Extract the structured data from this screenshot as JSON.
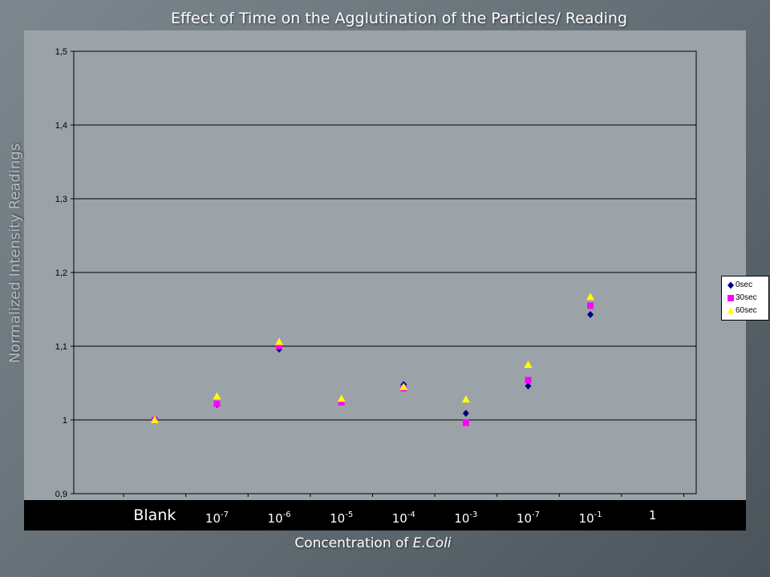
{
  "slide": {
    "title": "Effect of Time on the Agglutination of the Particles/ Reading"
  },
  "axes": {
    "ylabel": "Normalized Intensity Readings",
    "xlabel_prefix": "Concentration of ",
    "xlabel_italic": "E.Coli"
  },
  "x_categories": [
    {
      "base": "Blank",
      "exp": ""
    },
    {
      "base": "10",
      "exp": "-7"
    },
    {
      "base": "10",
      "exp": "-6"
    },
    {
      "base": "10",
      "exp": "-5"
    },
    {
      "base": "10",
      "exp": "-4"
    },
    {
      "base": "10",
      "exp": "-3"
    },
    {
      "base": "10",
      "exp": "-7"
    },
    {
      "base": "10",
      "exp": "-1"
    },
    {
      "base": "1",
      "exp": ""
    }
  ],
  "chart_data": {
    "type": "scatter",
    "categories": [
      "Blank",
      "10^-7",
      "10^-6",
      "10^-5",
      "10^-4",
      "10^-3",
      "10^-7",
      "10^-1",
      "1"
    ],
    "title": "Effect of Time on the Agglutination of the Particles/ Reading",
    "xlabel": "Concentration of E.Coli",
    "ylabel": "Normalized Intensity Readings",
    "ylim": [
      0.9,
      1.5
    ],
    "yticks": [
      0.9,
      1.0,
      1.1,
      1.2,
      1.3,
      1.4,
      1.5
    ],
    "ytick_labels": [
      "0,9",
      "1",
      "1,1",
      "1,2",
      "1,3",
      "1,4",
      "1,5"
    ],
    "grid": true,
    "legend": "right",
    "series": [
      {
        "name": "0sec",
        "marker": "diamond",
        "color": "#000080",
        "values": [
          1.0,
          1.021,
          1.096,
          1.026,
          1.048,
          1.009,
          1.046,
          1.143,
          null
        ]
      },
      {
        "name": "30sec",
        "marker": "square",
        "color": "#ff00ff",
        "values": [
          1.0,
          1.022,
          1.1,
          1.024,
          1.043,
          0.996,
          1.054,
          1.155,
          null
        ]
      },
      {
        "name": "60sec",
        "marker": "triangle",
        "color": "#ffff00",
        "values": [
          1.0,
          1.032,
          1.106,
          1.029,
          1.045,
          1.028,
          1.075,
          1.167,
          null
        ]
      }
    ]
  }
}
